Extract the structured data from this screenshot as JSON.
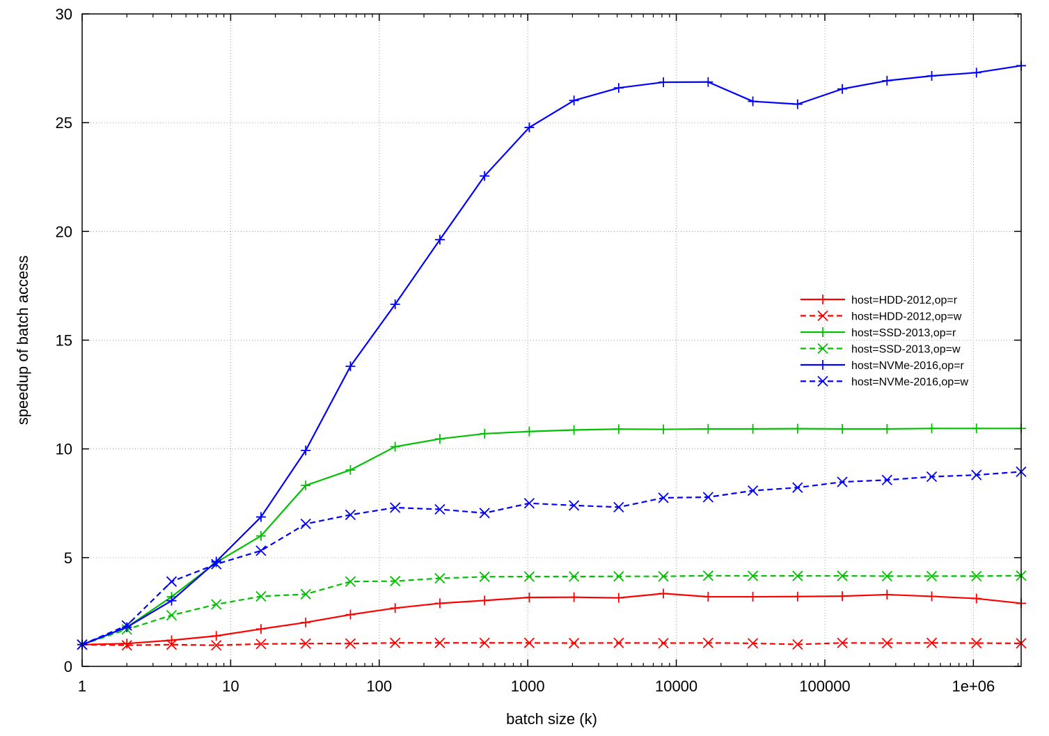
{
  "chart_data": {
    "type": "line",
    "title": "",
    "xlabel": "batch size (k)",
    "ylabel": "speedup of batch access",
    "xscale": "log",
    "xlim": [
      1,
      2097152
    ],
    "ylim": [
      0,
      30
    ],
    "grid": true,
    "legend_position": "right-middle",
    "x_ticks": [
      "1",
      "10",
      "100",
      "1000",
      "10000",
      "100000",
      "1e+06"
    ],
    "y_ticks": [
      "0",
      "5",
      "10",
      "15",
      "20",
      "25",
      "30"
    ],
    "x": [
      1,
      2,
      4,
      8,
      16,
      32,
      64,
      128,
      256,
      512,
      1024,
      2048,
      4096,
      8192,
      16384,
      32768,
      65536,
      131072,
      262144,
      524288,
      1048576,
      2097152
    ],
    "series": [
      {
        "name": "host=HDD-2012,op=r",
        "color": "#ff0000",
        "dashed": false,
        "marker": "plus",
        "values": [
          1.0,
          1.05,
          1.2,
          1.4,
          1.72,
          2.02,
          2.38,
          2.68,
          2.9,
          3.03,
          3.17,
          3.18,
          3.15,
          3.35,
          3.2,
          3.2,
          3.21,
          3.23,
          3.3,
          3.22,
          3.12,
          2.9
        ]
      },
      {
        "name": "host=HDD-2012,op=w",
        "color": "#ff0000",
        "dashed": true,
        "marker": "cross",
        "values": [
          1.0,
          0.97,
          1.0,
          0.97,
          1.03,
          1.05,
          1.05,
          1.08,
          1.08,
          1.08,
          1.08,
          1.07,
          1.08,
          1.07,
          1.08,
          1.06,
          1.01,
          1.08,
          1.07,
          1.08,
          1.07,
          1.06
        ]
      },
      {
        "name": "host=SSD-2013,op=r",
        "color": "#00c000",
        "dashed": false,
        "marker": "plus",
        "values": [
          1.0,
          1.8,
          3.2,
          4.78,
          6.0,
          8.32,
          9.03,
          10.1,
          10.46,
          10.7,
          10.8,
          10.87,
          10.91,
          10.9,
          10.92,
          10.92,
          10.93,
          10.92,
          10.92,
          10.94,
          10.94,
          10.94
        ]
      },
      {
        "name": "host=SSD-2013,op=w",
        "color": "#00c000",
        "dashed": true,
        "marker": "cross",
        "values": [
          1.0,
          1.7,
          2.35,
          2.85,
          3.22,
          3.32,
          3.9,
          3.92,
          4.05,
          4.12,
          4.13,
          4.13,
          4.14,
          4.14,
          4.17,
          4.16,
          4.16,
          4.16,
          4.15,
          4.15,
          4.15,
          4.17
        ]
      },
      {
        "name": "host=NVMe-2016,op=r",
        "color": "#0000ff",
        "dashed": false,
        "marker": "plus",
        "values": [
          1.0,
          1.8,
          3.02,
          4.82,
          6.87,
          9.93,
          13.8,
          16.65,
          19.62,
          22.55,
          24.78,
          26.02,
          26.6,
          26.86,
          26.87,
          25.98,
          25.85,
          26.55,
          26.93,
          27.15,
          27.3,
          27.62
        ]
      },
      {
        "name": "host=NVMe-2016,op=w",
        "color": "#0000ff",
        "dashed": true,
        "marker": "cross",
        "values": [
          1.0,
          1.88,
          3.9,
          4.7,
          5.32,
          6.55,
          6.97,
          7.3,
          7.22,
          7.05,
          7.5,
          7.4,
          7.32,
          7.75,
          7.78,
          8.08,
          8.22,
          8.48,
          8.57,
          8.72,
          8.8,
          8.95
        ]
      }
    ]
  }
}
